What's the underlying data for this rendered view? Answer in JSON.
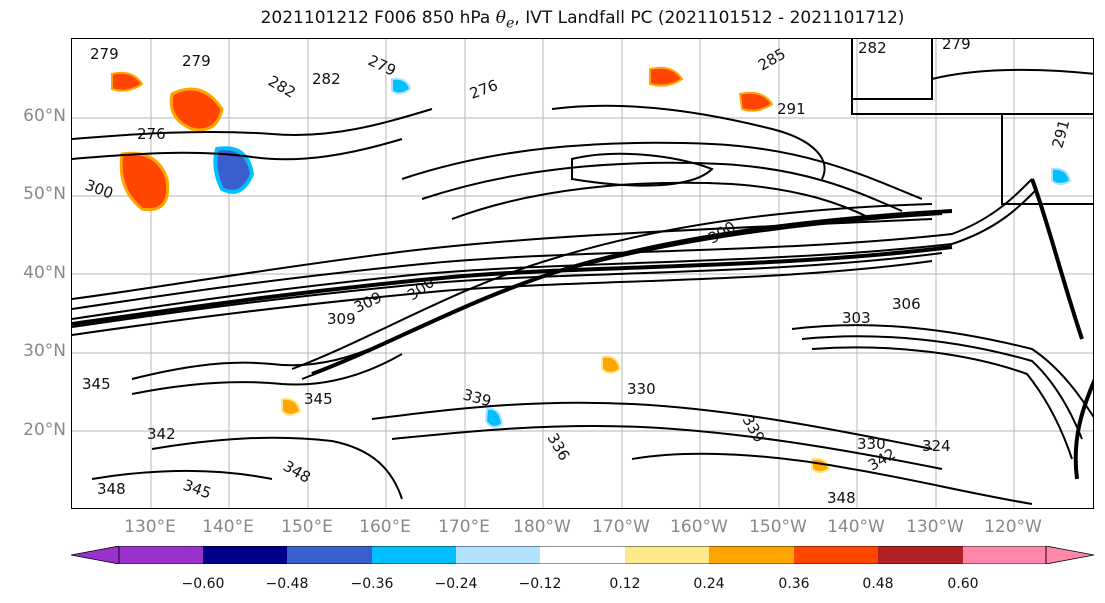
{
  "title": {
    "prefix": "2021101212 F006 850 hPa",
    "symbol": "θ",
    "subscript": "e",
    "suffix": ", IVT Landfall PC (2021101512 - 2021101712)"
  },
  "map": {
    "lat_labels": [
      "60°N",
      "50°N",
      "40°N",
      "30°N",
      "20°N"
    ],
    "lon_labels": [
      "130°E",
      "140°E",
      "150°E",
      "160°E",
      "170°E",
      "180°W",
      "170°W",
      "160°W",
      "150°W",
      "140°W",
      "130°W",
      "120°W"
    ],
    "contour_labels": [
      "279",
      "279",
      "282",
      "282",
      "279",
      "276",
      "276",
      "285",
      "291",
      "291",
      "282",
      "279",
      "300",
      "300",
      "300",
      "309",
      "309",
      "306",
      "303",
      "345",
      "345",
      "342",
      "345",
      "348",
      "339",
      "336",
      "330",
      "330",
      "324",
      "348",
      "348",
      "339",
      "342"
    ]
  },
  "colorbar": {
    "ticks": [
      "−0.60",
      "−0.48",
      "−0.36",
      "−0.24",
      "−0.12",
      "0.12",
      "0.24",
      "0.36",
      "0.48",
      "0.60"
    ],
    "colors": [
      "#9932cc",
      "#00008b",
      "#3a5fcd",
      "#00bfff",
      "#b0e2ff",
      "#ffffff",
      "#ffe88a",
      "#ffa500",
      "#ff4500",
      "#b22222",
      "#ff88aa"
    ]
  }
}
